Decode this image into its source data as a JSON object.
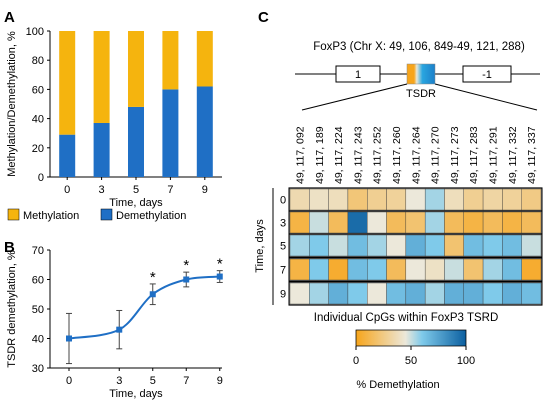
{
  "colors": {
    "methylation": "#F5B40E",
    "demethylation": "#1F6FC5",
    "line": "#1F6FC5",
    "heat_low": "#F7A51B",
    "heat_mid": "#ECE8DA",
    "heat_high": "#0B5FA0"
  },
  "chart_data": [
    {
      "panel": "A",
      "type": "bar",
      "stacked": true,
      "categories": [
        "0",
        "3",
        "5",
        "7",
        "9"
      ],
      "series": [
        {
          "name": "Demethylation",
          "values": [
            29,
            37,
            48,
            60,
            62
          ]
        },
        {
          "name": "Methylation",
          "values": [
            71,
            63,
            52,
            40,
            38
          ]
        }
      ],
      "xlabel": "Time, days",
      "ylabel": "Methylation/Demethylation, %",
      "ylim": [
        0,
        100
      ],
      "yticks": [
        "0",
        "20",
        "40",
        "60",
        "80",
        "100"
      ],
      "legend_placement": "bottom"
    },
    {
      "panel": "B",
      "type": "line",
      "x": [
        0,
        3,
        5,
        7,
        9
      ],
      "x_labels": [
        "0",
        "3",
        "5",
        "7",
        "9"
      ],
      "y": [
        40,
        43,
        55,
        60,
        61
      ],
      "error": [
        8.5,
        6.5,
        3.5,
        2.5,
        2
      ],
      "significant": [
        false,
        false,
        true,
        true,
        true
      ],
      "marker_text": "*",
      "xlabel": "Time, days",
      "ylabel": "TSDR demethylation, %",
      "ylim": [
        30,
        70
      ],
      "yticks": [
        "30",
        "40",
        "50",
        "60",
        "70"
      ]
    },
    {
      "panel": "C",
      "type": "heatmap",
      "gene_title": "FoxP3 (Chr X: 49, 106, 849-49, 121, 288)",
      "exon_left": "1",
      "exon_right": "-1",
      "region_label": "TSDR",
      "columns": [
        "49, 117, 092",
        "49, 117, 189",
        "49, 117, 224",
        "49, 117, 243",
        "49, 117, 252",
        "49, 117, 260",
        "49, 117, 264",
        "49, 117, 270",
        "49, 117, 273",
        "49, 117, 283",
        "49, 117, 291",
        "49, 117, 332",
        "49, 117, 337"
      ],
      "rows": [
        "0",
        "3",
        "5",
        "7",
        "9"
      ],
      "values": [
        [
          35,
          40,
          38,
          22,
          28,
          30,
          45,
          55,
          38,
          28,
          32,
          30,
          25
        ],
        [
          10,
          50,
          15,
          95,
          45,
          15,
          20,
          55,
          15,
          10,
          15,
          10,
          15
        ],
        [
          55,
          60,
          50,
          65,
          55,
          45,
          70,
          60,
          20,
          65,
          60,
          65,
          50
        ],
        [
          10,
          60,
          5,
          65,
          60,
          15,
          45,
          40,
          50,
          20,
          55,
          65,
          5
        ],
        [
          45,
          55,
          70,
          60,
          45,
          65,
          70,
          55,
          70,
          70,
          60,
          70,
          65
        ]
      ],
      "ylabel": "Time, days",
      "xlabel": "Individual  CpGs within  FoxP3  TSRD",
      "colorbar_ticks": [
        "0",
        "50",
        "100"
      ],
      "colorbar_label": "% Demethylation"
    }
  ],
  "panels": {
    "a": "A",
    "b": "B",
    "c": "C"
  }
}
